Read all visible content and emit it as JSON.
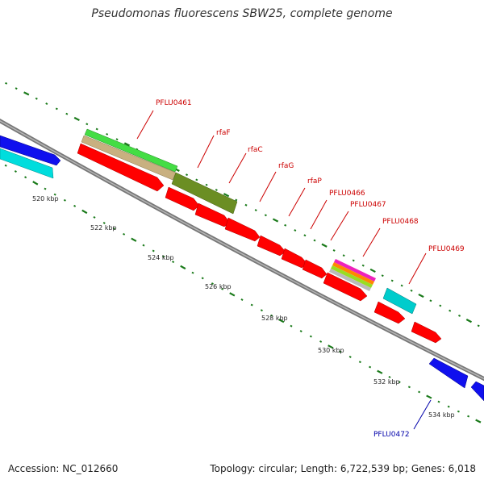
{
  "title": "Pseudomonas fluorescens SBW25, complete genome",
  "footer": {
    "accession": "Accession: NC_012660",
    "topology": "Topology: circular; Length: 6,722,539 bp; Genes: 6,018"
  },
  "colors": {
    "backbone": "#888888",
    "forward_gene": "#ff0000",
    "reverse_gene": "#0000ee",
    "tick": "#006400",
    "label_forward": "#cc0000",
    "label_reverse": "#0000aa"
  },
  "scale_labels": [
    "520 kbp",
    "522 kbp",
    "524 kbp",
    "526 kbp",
    "528 kbp",
    "530 kbp",
    "532 kbp",
    "534 kbp"
  ],
  "gene_labels": [
    {
      "text": "PFLU0461",
      "strand": "forward"
    },
    {
      "text": "rfaF",
      "strand": "forward"
    },
    {
      "text": "rfaC",
      "strand": "forward"
    },
    {
      "text": "rfaG",
      "strand": "forward"
    },
    {
      "text": "rfaP",
      "strand": "forward"
    },
    {
      "text": "PFLU0466",
      "strand": "forward"
    },
    {
      "text": "PFLU0467",
      "strand": "forward"
    },
    {
      "text": "PFLU0468",
      "strand": "forward"
    },
    {
      "text": "PFLU0469",
      "strand": "forward"
    },
    {
      "text": "PFLU0472",
      "strand": "reverse"
    }
  ]
}
